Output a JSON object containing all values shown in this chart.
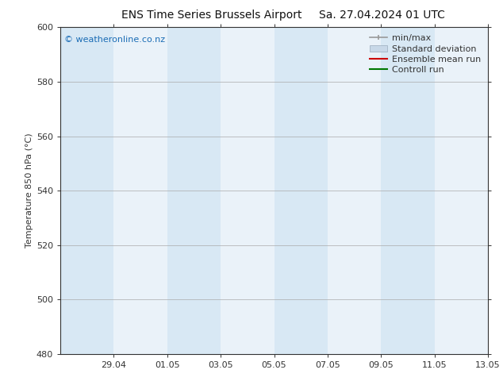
{
  "title_left": "ENS Time Series Brussels Airport",
  "title_right": "Sa. 27.04.2024 01 UTC",
  "ylabel": "Temperature 850 hPa (°C)",
  "ylim": [
    480,
    600
  ],
  "yticks": [
    480,
    500,
    520,
    540,
    560,
    580,
    600
  ],
  "xlim_start": 0,
  "xlim_end": 16,
  "xtick_labels": [
    "29.04",
    "01.05",
    "03.05",
    "05.05",
    "07.05",
    "09.05",
    "11.05",
    "13.05"
  ],
  "xtick_positions": [
    2,
    4,
    6,
    8,
    10,
    12,
    14,
    16
  ],
  "band_color_dark": "#d8e8f4",
  "band_color_light": "#eaf2f9",
  "plot_bg_color": "#ffffff",
  "watermark_text": "© weatheronline.co.nz",
  "watermark_color": "#1a6cb5",
  "title_fontsize": 10,
  "axis_label_fontsize": 8,
  "tick_fontsize": 8,
  "legend_fontsize": 8
}
